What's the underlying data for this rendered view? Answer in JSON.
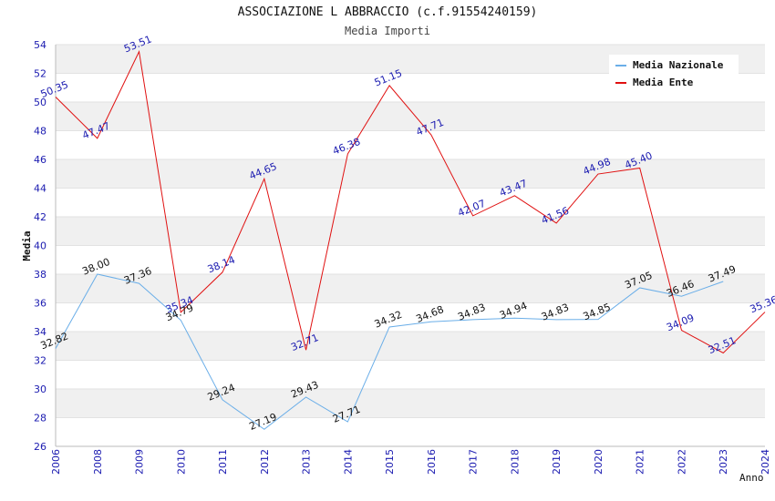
{
  "chart_data": {
    "type": "line",
    "title": "ASSOCIAZIONE L ABBRACCIO (c.f.91554240159)",
    "subtitle": "Media Importi",
    "xlabel": "Anno",
    "ylabel": "Media",
    "categories": [
      "2006",
      "2008",
      "2009",
      "2010",
      "2011",
      "2012",
      "2013",
      "2014",
      "2015",
      "2016",
      "2017",
      "2018",
      "2019",
      "2020",
      "2021",
      "2022",
      "2023",
      "2024"
    ],
    "ylim": [
      26,
      54
    ],
    "yticks": [
      26,
      28,
      30,
      32,
      34,
      36,
      38,
      40,
      42,
      44,
      46,
      48,
      50,
      52,
      54
    ],
    "grid": "alternating horizontal bands",
    "legend_position": "top-right",
    "series": [
      {
        "name": "Media Nazionale",
        "color": "#6aaee8",
        "values": [
          32.82,
          38.0,
          37.36,
          34.79,
          29.24,
          27.19,
          29.43,
          27.71,
          34.32,
          34.68,
          34.83,
          34.94,
          34.83,
          34.85,
          37.05,
          36.46,
          37.49,
          null
        ],
        "labels": [
          "32.82",
          "38.00",
          "37.36",
          "34.79",
          "29.24",
          "27.19",
          "29.43",
          "27.71",
          "34.32",
          "34.68",
          "34.83",
          "34.94",
          "34.83",
          "34.85",
          "37.05",
          "36.46",
          "37.49",
          ""
        ]
      },
      {
        "name": "Media Ente",
        "color": "#e01010",
        "values": [
          50.35,
          47.47,
          53.51,
          35.34,
          38.14,
          44.65,
          32.71,
          46.38,
          51.15,
          47.71,
          42.07,
          43.47,
          41.56,
          44.98,
          45.4,
          34.09,
          32.51,
          35.36
        ],
        "labels": [
          "50.35",
          "47.47",
          "53.51",
          "35.34",
          "38.14",
          "44.65",
          "32.71",
          "46.38",
          "51.15",
          "47.71",
          "42.07",
          "43.47",
          "41.56",
          "44.98",
          "45.40",
          "34.09",
          "32.51",
          "35.36"
        ]
      }
    ]
  }
}
